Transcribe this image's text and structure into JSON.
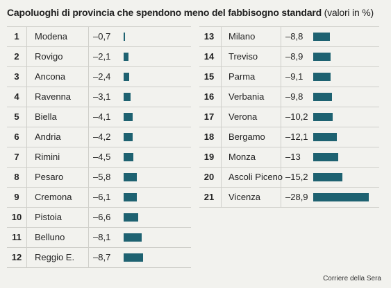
{
  "header": {
    "title": "Capoluoghi di provincia che spendono meno del fabbisogno standard",
    "unit": "(valori in %)"
  },
  "source": "Corriere della Sera",
  "colors": {
    "bar": "#1e6271",
    "background": "#f2f2ee",
    "rule": "#cfcfca"
  },
  "chart_data": {
    "type": "bar",
    "title": "Capoluoghi di provincia che spendono meno del fabbisogno standard (valori in %)",
    "ranks": [
      "1",
      "2",
      "3",
      "4",
      "5",
      "6",
      "7",
      "8",
      "9",
      "10",
      "11",
      "12",
      "13",
      "14",
      "15",
      "16",
      "17",
      "18",
      "19",
      "20",
      "21"
    ],
    "categories": [
      "Modena",
      "Rovigo",
      "Ancona",
      "Ravenna",
      "Biella",
      "Andria",
      "Rimini",
      "Pesaro",
      "Cremona",
      "Pistoia",
      "Belluno",
      "Reggio E.",
      "Milano",
      "Treviso",
      "Parma",
      "Verbania",
      "Verona",
      "Bergamo",
      "Monza",
      "Ascoli Piceno",
      "Vicenza"
    ],
    "values": [
      -0.7,
      -2.1,
      -2.4,
      -3.1,
      -4.1,
      -4.2,
      -4.5,
      -5.8,
      -6.1,
      -6.6,
      -8.1,
      -8.7,
      -8.8,
      -8.9,
      -9.1,
      -9.8,
      -10.2,
      -12.1,
      -13,
      -15.2,
      -28.9
    ],
    "value_labels": [
      "–0,7",
      "–2,1",
      "–2,4",
      "–3,1",
      "–4,1",
      "–4,2",
      "–4,5",
      "–5,8",
      "–6,1",
      "–6,6",
      "–8,1",
      "–8,7",
      "–8,8",
      "–8,9",
      "–9,1",
      "–9,8",
      "–10,2",
      "–12,1",
      "–13",
      "–15,2",
      "–28,9"
    ]
  }
}
